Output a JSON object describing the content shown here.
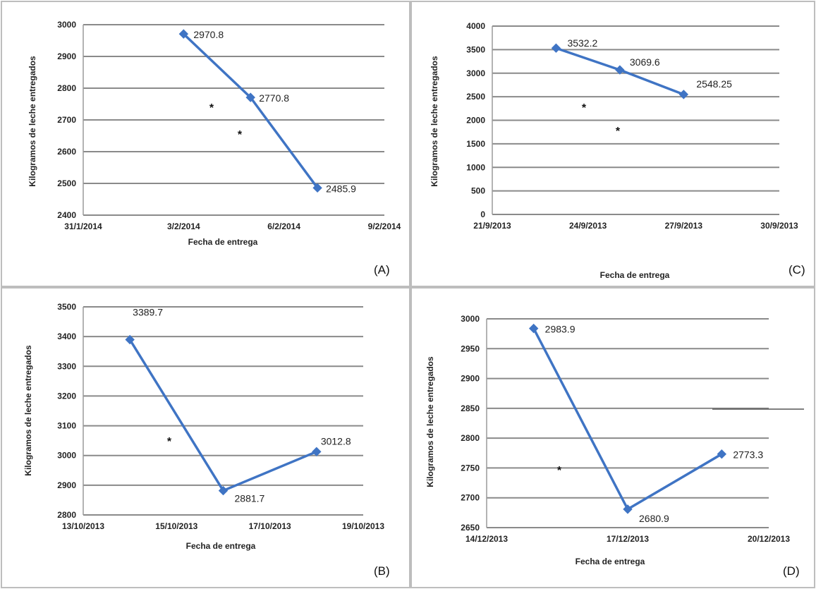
{
  "chart_data": [
    {
      "panel_label": "(A)",
      "type": "line",
      "xlabel": "Fecha de entrega",
      "ylabel": "Kilogramos de leche entregados",
      "ylim": [
        2400,
        3000
      ],
      "yticks": [
        2400,
        2500,
        2600,
        2700,
        2800,
        2900,
        3000
      ],
      "xtick_labels": [
        "31/1/2014",
        "3/2/2014",
        "6/2/2014",
        "9/2/2014"
      ],
      "x": [
        "3/2/2014",
        "5/2/2014",
        "7/2/2014"
      ],
      "x_pos": [
        3,
        5,
        7
      ],
      "values": [
        2970.8,
        2770.8,
        2485.9
      ],
      "data_labels": [
        "2970.8",
        "2770.8",
        "2485.9"
      ],
      "annotations": [
        "*",
        "*"
      ],
      "grid": true
    },
    {
      "panel_label": "(C)",
      "type": "line",
      "xlabel": "Fecha de entrega",
      "ylabel": "Kilogramos de leche entregados",
      "ylim": [
        0,
        4000
      ],
      "yticks": [
        0,
        500,
        1000,
        1500,
        2000,
        2500,
        3000,
        3500,
        4000
      ],
      "xtick_labels": [
        "21/9/2013",
        "24/9/2013",
        "27/9/2013",
        "30/9/2013"
      ],
      "x": [
        "23/9/2013",
        "25/9/2013",
        "27/9/2013"
      ],
      "x_pos": [
        2,
        4,
        6
      ],
      "values": [
        3532.2,
        3069.6,
        2548.25
      ],
      "data_labels": [
        "3532.2",
        "3069.6",
        "2548.25"
      ],
      "annotations": [
        "*",
        "*"
      ],
      "grid": true
    },
    {
      "panel_label": "(B)",
      "type": "line",
      "xlabel": "Fecha de entrega",
      "ylabel": "Kilogramos de leche entregados",
      "ylim": [
        2800,
        3500
      ],
      "yticks": [
        2800,
        2900,
        3000,
        3100,
        3200,
        3300,
        3400,
        3500
      ],
      "xtick_labels": [
        "13/10/2013",
        "15/10/2013",
        "17/10/2013",
        "19/10/2013"
      ],
      "x": [
        "14/10/2013",
        "16/10/2013",
        "18/10/2013"
      ],
      "x_pos": [
        1,
        3,
        5
      ],
      "values": [
        3389.7,
        2881.7,
        3012.8
      ],
      "data_labels": [
        "3389.7",
        "2881.7",
        "3012.8"
      ],
      "annotations": [
        "*"
      ],
      "grid": true
    },
    {
      "panel_label": "(D)",
      "type": "line",
      "xlabel": "Fecha de entrega",
      "ylabel": "Kilogramos de leche entregados",
      "ylim": [
        2650,
        3000
      ],
      "yticks": [
        2650,
        2700,
        2750,
        2800,
        2850,
        2900,
        2950,
        3000
      ],
      "xtick_labels": [
        "14/12/2013",
        "17/12/2013",
        "20/12/2013"
      ],
      "x": [
        "15/12/2013",
        "17/12/2013",
        "19/12/2013"
      ],
      "x_pos": [
        1,
        3,
        5
      ],
      "values": [
        2983.9,
        2680.9,
        2773.3
      ],
      "data_labels": [
        "2983.9",
        "2680.9",
        "2773.3"
      ],
      "annotations": [
        "*"
      ],
      "grid": true
    }
  ],
  "colors": {
    "series": "#3f74c4",
    "grid": "#8a8a8a",
    "frame": "#bdbdbd"
  }
}
